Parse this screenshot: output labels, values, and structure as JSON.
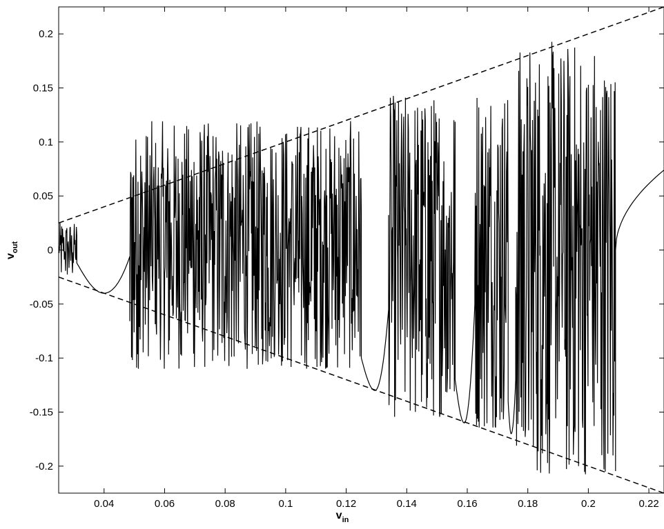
{
  "chart_data": {
    "type": "line",
    "title": "",
    "xlabel": "v_in",
    "ylabel": "v_out",
    "xlabel_parts": {
      "main": "v",
      "sub": "in"
    },
    "ylabel_parts": {
      "main": "v",
      "sub": "out"
    },
    "xlim": [
      0.025,
      0.225
    ],
    "ylim": [
      -0.225,
      0.225
    ],
    "x_ticks": [
      0.04,
      0.06,
      0.08,
      0.1,
      0.12,
      0.14,
      0.16,
      0.18,
      0.2,
      0.22
    ],
    "x_tick_labels": [
      "0.04",
      "0.06",
      "0.08",
      "0.1",
      "0.12",
      "0.14",
      "0.16",
      "0.18",
      "0.2",
      "0.22"
    ],
    "y_ticks": [
      0.2,
      0.15,
      0.1,
      0.05,
      0,
      -0.05,
      -0.1,
      -0.15,
      -0.2
    ],
    "y_tick_labels": [
      "0.2",
      "0.15",
      "0.1",
      "0.05",
      "0",
      "-0.05",
      "-0.1",
      "-0.15",
      "-0.2"
    ],
    "grid": false,
    "legend": "none",
    "series": [
      {
        "style": "dashed",
        "x": [
          0.025,
          0.225
        ],
        "y": [
          0.025,
          0.225
        ]
      },
      {
        "style": "dashed",
        "x": [
          0.025,
          0.225
        ],
        "y": [
          -0.025,
          -0.225
        ]
      },
      {
        "style": "solid",
        "segments": [
          {
            "kind": "chaotic",
            "x": [
              0.025,
              0.031
            ],
            "y_min": -0.025,
            "y_max": 0.026
          },
          {
            "kind": "smooth",
            "x": [
              0.031,
              0.0485
            ],
            "y_start": -0.012,
            "y_min": -0.04,
            "x_min": 0.04,
            "y_end": -0.006
          },
          {
            "kind": "chaotic",
            "x": [
              0.0485,
              0.125
            ],
            "y_min": -0.11,
            "y_max": 0.12
          },
          {
            "kind": "smooth",
            "x": [
              0.125,
              0.134
            ],
            "y_start": -0.1,
            "y_min": -0.13,
            "x_min": 0.1295,
            "y_end": -0.055
          },
          {
            "kind": "chaotic",
            "x": [
              0.134,
              0.156
            ],
            "y_min": -0.155,
            "y_max": 0.145
          },
          {
            "kind": "smooth",
            "x": [
              0.156,
              0.1625
            ],
            "y_start": -0.12,
            "y_min": -0.16,
            "x_min": 0.159,
            "y_end": -0.05
          },
          {
            "kind": "chaotic",
            "x": [
              0.1625,
              0.1735
            ],
            "y_min": -0.165,
            "y_max": 0.16
          },
          {
            "kind": "smooth",
            "x": [
              0.1735,
              0.176
            ],
            "y_start": -0.14,
            "y_min": -0.17,
            "x_min": 0.1745,
            "y_end": -0.12
          },
          {
            "kind": "chaotic",
            "x": [
              0.176,
              0.209
            ],
            "y_min": -0.208,
            "y_max": 0.195
          },
          {
            "kind": "smooth",
            "x": [
              0.209,
              0.225
            ],
            "y_start": 0.0,
            "y_end": 0.074
          }
        ]
      }
    ],
    "colors": {
      "line": "#000000",
      "axes": "#000000",
      "background": "#ffffff"
    }
  }
}
